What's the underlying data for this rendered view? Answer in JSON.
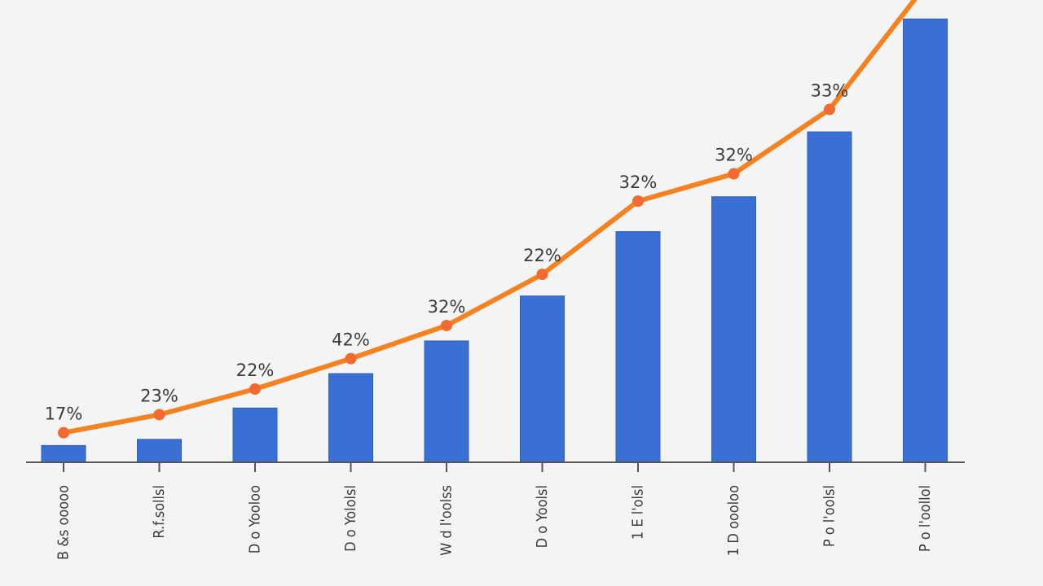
{
  "chart_data": {
    "type": "bar",
    "title": "",
    "xlabel": "",
    "ylabel": "",
    "categories": [
      "B &s ooooo",
      "R.f.sollsl",
      "D o Yooloo",
      "D o Yololsl",
      "W d l'oolss",
      "D o Yoolsl",
      "1 E l'olsl",
      "1 D oooloo",
      "P o l'oolsl",
      "P o l'oollol"
    ],
    "ylim": [
      0,
      1000
    ],
    "series": [
      {
        "type": "bar",
        "color": "#3a6fd4",
        "values": [
          38,
          52,
          123,
          201,
          275,
          377,
          523,
          602,
          749,
          1005
        ]
      },
      {
        "type": "line",
        "color": "#f58220",
        "marker_color": "#f26a30",
        "values": [
          67,
          108,
          166,
          235,
          310,
          426,
          592,
          654,
          800,
          1080
        ],
        "labels": [
          "17%",
          "23%",
          "22%",
          "42%",
          "32%",
          "22%",
          "32%",
          "32%",
          "33%",
          ""
        ]
      }
    ],
    "colors": {
      "background": "#f4f4f4",
      "axis": "#555555",
      "bar_edge": "#2f5fb8"
    }
  }
}
